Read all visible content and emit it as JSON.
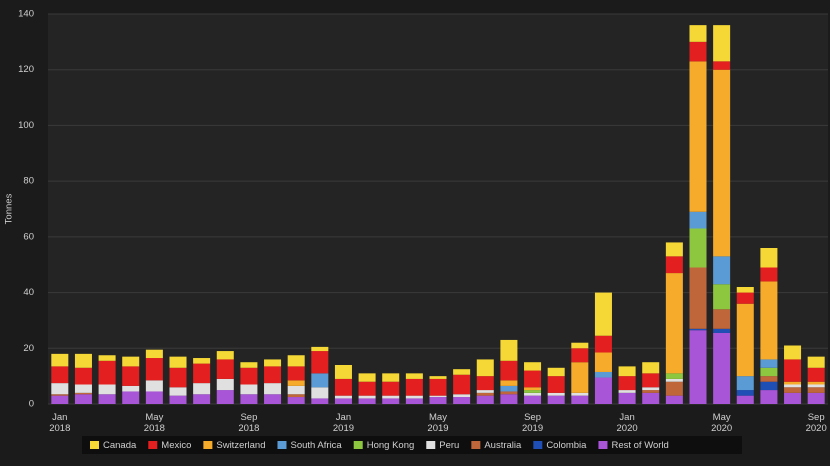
{
  "chart_data": {
    "type": "stacked-bar",
    "y_label": "Tonnes",
    "categories": [
      "Jan 2018",
      null,
      null,
      null,
      "May 2018",
      null,
      null,
      null,
      "Sep 2018",
      null,
      null,
      null,
      "Jan 2019",
      null,
      null,
      null,
      "May 2019",
      null,
      null,
      null,
      "Sep 2019",
      null,
      null,
      null,
      "Jan 2020",
      null,
      null,
      null,
      "May 2020",
      null,
      null,
      null,
      "Sep 2020"
    ],
    "series": [
      {
        "name": "Canada",
        "color": "#f5d836",
        "values": [
          4.5,
          5,
          2,
          3.5,
          3,
          4,
          2,
          3,
          2,
          2.5,
          4,
          1.5,
          5,
          3,
          3,
          2,
          1,
          2,
          6,
          7.5,
          3,
          3,
          2,
          15.5,
          3.5,
          4,
          5,
          6,
          13,
          2,
          7,
          5,
          4
        ]
      },
      {
        "name": "Mexico",
        "color": "#e41f1f",
        "values": [
          6,
          6,
          8.5,
          7,
          8,
          7,
          7,
          7,
          6,
          6,
          5,
          8,
          6,
          5,
          5,
          6,
          6,
          7,
          5,
          7,
          6,
          6,
          5,
          6,
          5,
          5,
          6,
          7,
          3,
          4,
          5,
          8,
          5
        ]
      },
      {
        "name": "Switzerland",
        "color": "#f6ab2b",
        "values": [
          0,
          0,
          0,
          0,
          0,
          0,
          0,
          0,
          0,
          0,
          2,
          0,
          0,
          0,
          0,
          0,
          0,
          0,
          0,
          2,
          1,
          0,
          11,
          7,
          0,
          0,
          36,
          54,
          67,
          26,
          28,
          1,
          1
        ]
      },
      {
        "name": "South Africa",
        "color": "#5b9bd5",
        "values": [
          0,
          0,
          0,
          0,
          0,
          0,
          0,
          0,
          0,
          0,
          0,
          5,
          0,
          0,
          0,
          0,
          0,
          0,
          0,
          2,
          0,
          0,
          0,
          2,
          0,
          0,
          0,
          6,
          10,
          5,
          3,
          0,
          0
        ]
      },
      {
        "name": "Hong Kong",
        "color": "#8dc63f",
        "values": [
          0,
          0,
          0,
          0,
          0,
          0,
          0,
          0,
          0,
          0,
          0,
          0,
          0,
          0,
          0,
          0,
          0,
          0,
          0,
          0,
          1,
          0,
          0,
          0,
          0,
          0,
          2,
          14,
          9,
          0,
          3,
          0,
          0
        ]
      },
      {
        "name": "Peru",
        "color": "#e0e0e0",
        "values": [
          4,
          3,
          3.5,
          2,
          4,
          3,
          4,
          4,
          3.5,
          4,
          3,
          4,
          1,
          1,
          1,
          1,
          0.5,
          1,
          1,
          0,
          1,
          1,
          1,
          0,
          1,
          1,
          1,
          0,
          0,
          0,
          0,
          1,
          1
        ]
      },
      {
        "name": "Australia",
        "color": "#c0663b",
        "values": [
          0.5,
          0.5,
          0,
          0,
          0,
          0,
          0,
          0,
          0,
          0,
          1,
          0,
          0,
          0,
          0,
          0,
          0,
          0,
          1,
          1,
          0,
          0,
          0,
          0,
          0,
          1,
          5,
          22,
          7,
          0,
          2,
          2,
          2
        ]
      },
      {
        "name": "Colombia",
        "color": "#1f4fb4",
        "values": [
          0,
          0,
          0,
          0,
          0,
          0,
          0,
          0,
          0,
          0,
          0,
          0,
          0,
          0,
          0,
          0,
          0,
          0,
          0,
          0,
          0,
          0,
          0,
          0,
          0,
          0,
          0,
          0.5,
          1.5,
          2,
          3,
          0,
          0
        ]
      },
      {
        "name": "Rest of World",
        "color": "#a855d8",
        "values": [
          3,
          3.5,
          3.5,
          4.5,
          4.5,
          3,
          3.5,
          5,
          3.5,
          3.5,
          2.5,
          2,
          2,
          2,
          2,
          2,
          2.5,
          2.5,
          3,
          3.5,
          3,
          3,
          3,
          9.5,
          4,
          4,
          3,
          26.5,
          25.5,
          3,
          5,
          4,
          4
        ]
      }
    ],
    "ylim": [
      0,
      140
    ],
    "yticks": [
      0,
      20,
      40,
      60,
      80,
      100,
      120,
      140
    ],
    "grid": true
  }
}
